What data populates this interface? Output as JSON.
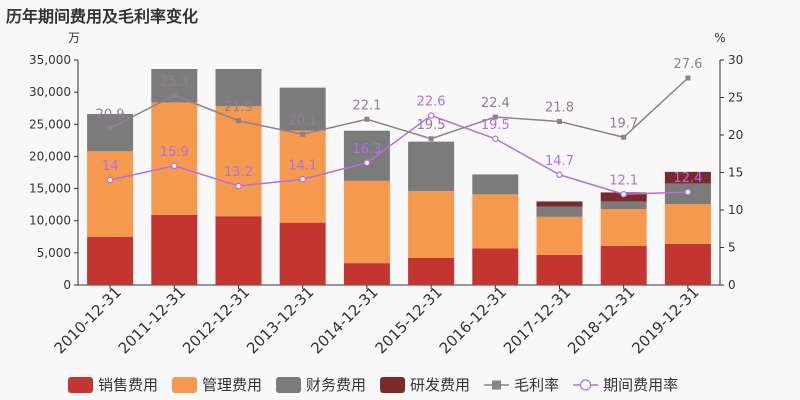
{
  "chart_data": {
    "title": "历年期间费用及毛利率变化",
    "type": "bar",
    "stacked": true,
    "left_unit": "万",
    "right_unit": "%",
    "categories": [
      "2010-12-31",
      "2011-12-31",
      "2012-12-31",
      "2013-12-31",
      "2014-12-31",
      "2015-12-31",
      "2016-12-31",
      "2017-12-31",
      "2018-12-31",
      "2019-12-31"
    ],
    "ylim_left": [
      0,
      35000
    ],
    "yticks_left": [
      "0",
      "5,000",
      "10,000",
      "15,000",
      "20,000",
      "25,000",
      "30,000",
      "35,000"
    ],
    "ylim_right": [
      0,
      30
    ],
    "yticks_right": [
      "0",
      "5",
      "10",
      "15",
      "20",
      "25",
      "30"
    ],
    "grid": false,
    "legend_position": "bottom",
    "series": [
      {
        "name": "销售费用",
        "type": "bar",
        "axis": "left",
        "color": "#c23531",
        "values": [
          7500,
          10900,
          10700,
          9700,
          3400,
          4200,
          5700,
          4700,
          6100,
          6400
        ]
      },
      {
        "name": "管理费用",
        "type": "bar",
        "axis": "left",
        "color": "#f5994e",
        "values": [
          13300,
          17500,
          17100,
          14300,
          12800,
          10400,
          8400,
          5900,
          5700,
          6200
        ]
      },
      {
        "name": "财务费用",
        "type": "bar",
        "axis": "left",
        "color": "#7b7b7b",
        "values": [
          5800,
          5200,
          5800,
          6700,
          7800,
          7700,
          3100,
          1600,
          1200,
          3200
        ]
      },
      {
        "name": "研发费用",
        "type": "bar",
        "axis": "left",
        "color": "#7a2a2a",
        "values": [
          0,
          0,
          0,
          0,
          0,
          0,
          0,
          800,
          1400,
          1800
        ]
      },
      {
        "name": "毛利率",
        "type": "line",
        "axis": "right",
        "color": "#8f7f8f",
        "values": [
          20.9,
          25.3,
          21.9,
          20.1,
          22.1,
          19.5,
          22.4,
          21.8,
          19.7,
          27.6
        ]
      },
      {
        "name": "期间费用率",
        "type": "line",
        "axis": "right",
        "color": "#b76ee0",
        "values": [
          14,
          15.9,
          13.2,
          14.1,
          16.3,
          22.6,
          19.5,
          14.7,
          12.1,
          12.4
        ]
      }
    ]
  }
}
